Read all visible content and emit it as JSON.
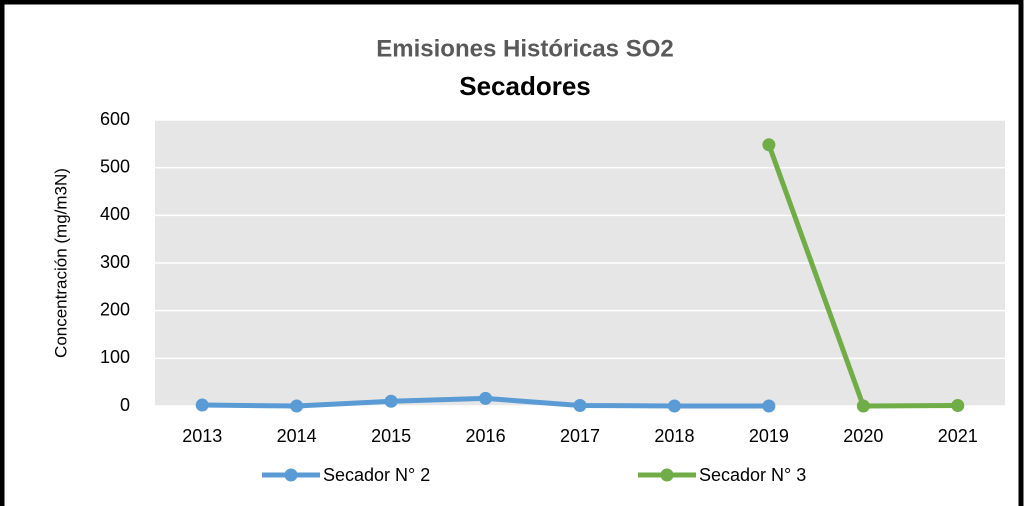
{
  "chart_data": {
    "type": "line",
    "title": "Emisiones Históricas SO2",
    "subtitle": "Secadores",
    "y_label": "Concentración (mg/m3N)",
    "categories": [
      "2013",
      "2014",
      "2015",
      "2016",
      "2017",
      "2018",
      "2019",
      "2020",
      "2021"
    ],
    "series": [
      {
        "name": "Secador N° 2",
        "color": "#5b9bd5",
        "values": [
          2,
          0,
          10,
          16,
          1,
          0,
          0,
          null,
          null
        ]
      },
      {
        "name": "Secador N° 3",
        "color": "#70ad47",
        "values": [
          null,
          null,
          null,
          null,
          null,
          null,
          548,
          0,
          1
        ]
      }
    ],
    "ylim": [
      0,
      600
    ],
    "yticks": [
      0,
      100,
      200,
      300,
      400,
      500,
      600
    ],
    "grid": true,
    "legend": "bottom"
  }
}
